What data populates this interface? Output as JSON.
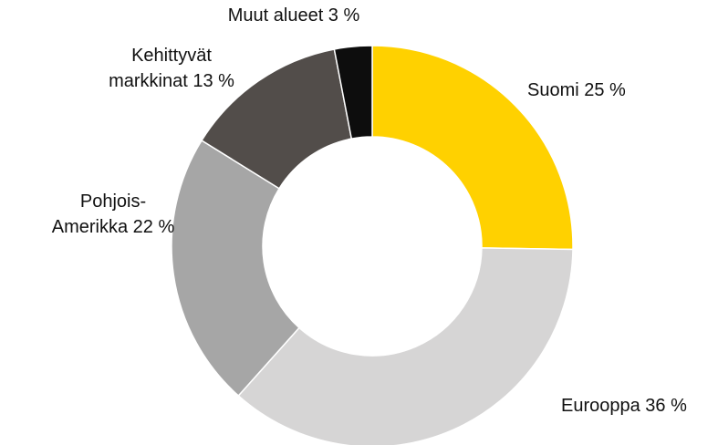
{
  "chart_data": {
    "type": "donut",
    "categories": [
      "Suomi",
      "Eurooppa",
      "Pohjois-Amerikka",
      "Kehittyvät markkinat",
      "Muut alueet"
    ],
    "values": [
      25,
      36,
      22,
      13,
      3
    ],
    "labels": [
      [
        "Suomi 25 %"
      ],
      [
        "Eurooppa 36 %"
      ],
      [
        "Pohjois-",
        "Amerikka 22 %"
      ],
      [
        "Kehittyvät",
        "markkinat 13 %"
      ],
      [
        "Muut alueet 3 %"
      ]
    ],
    "colors": [
      "#FFD100",
      "#D6D5D5",
      "#A6A6A6",
      "#524D4A",
      "#0D0D0D"
    ]
  }
}
